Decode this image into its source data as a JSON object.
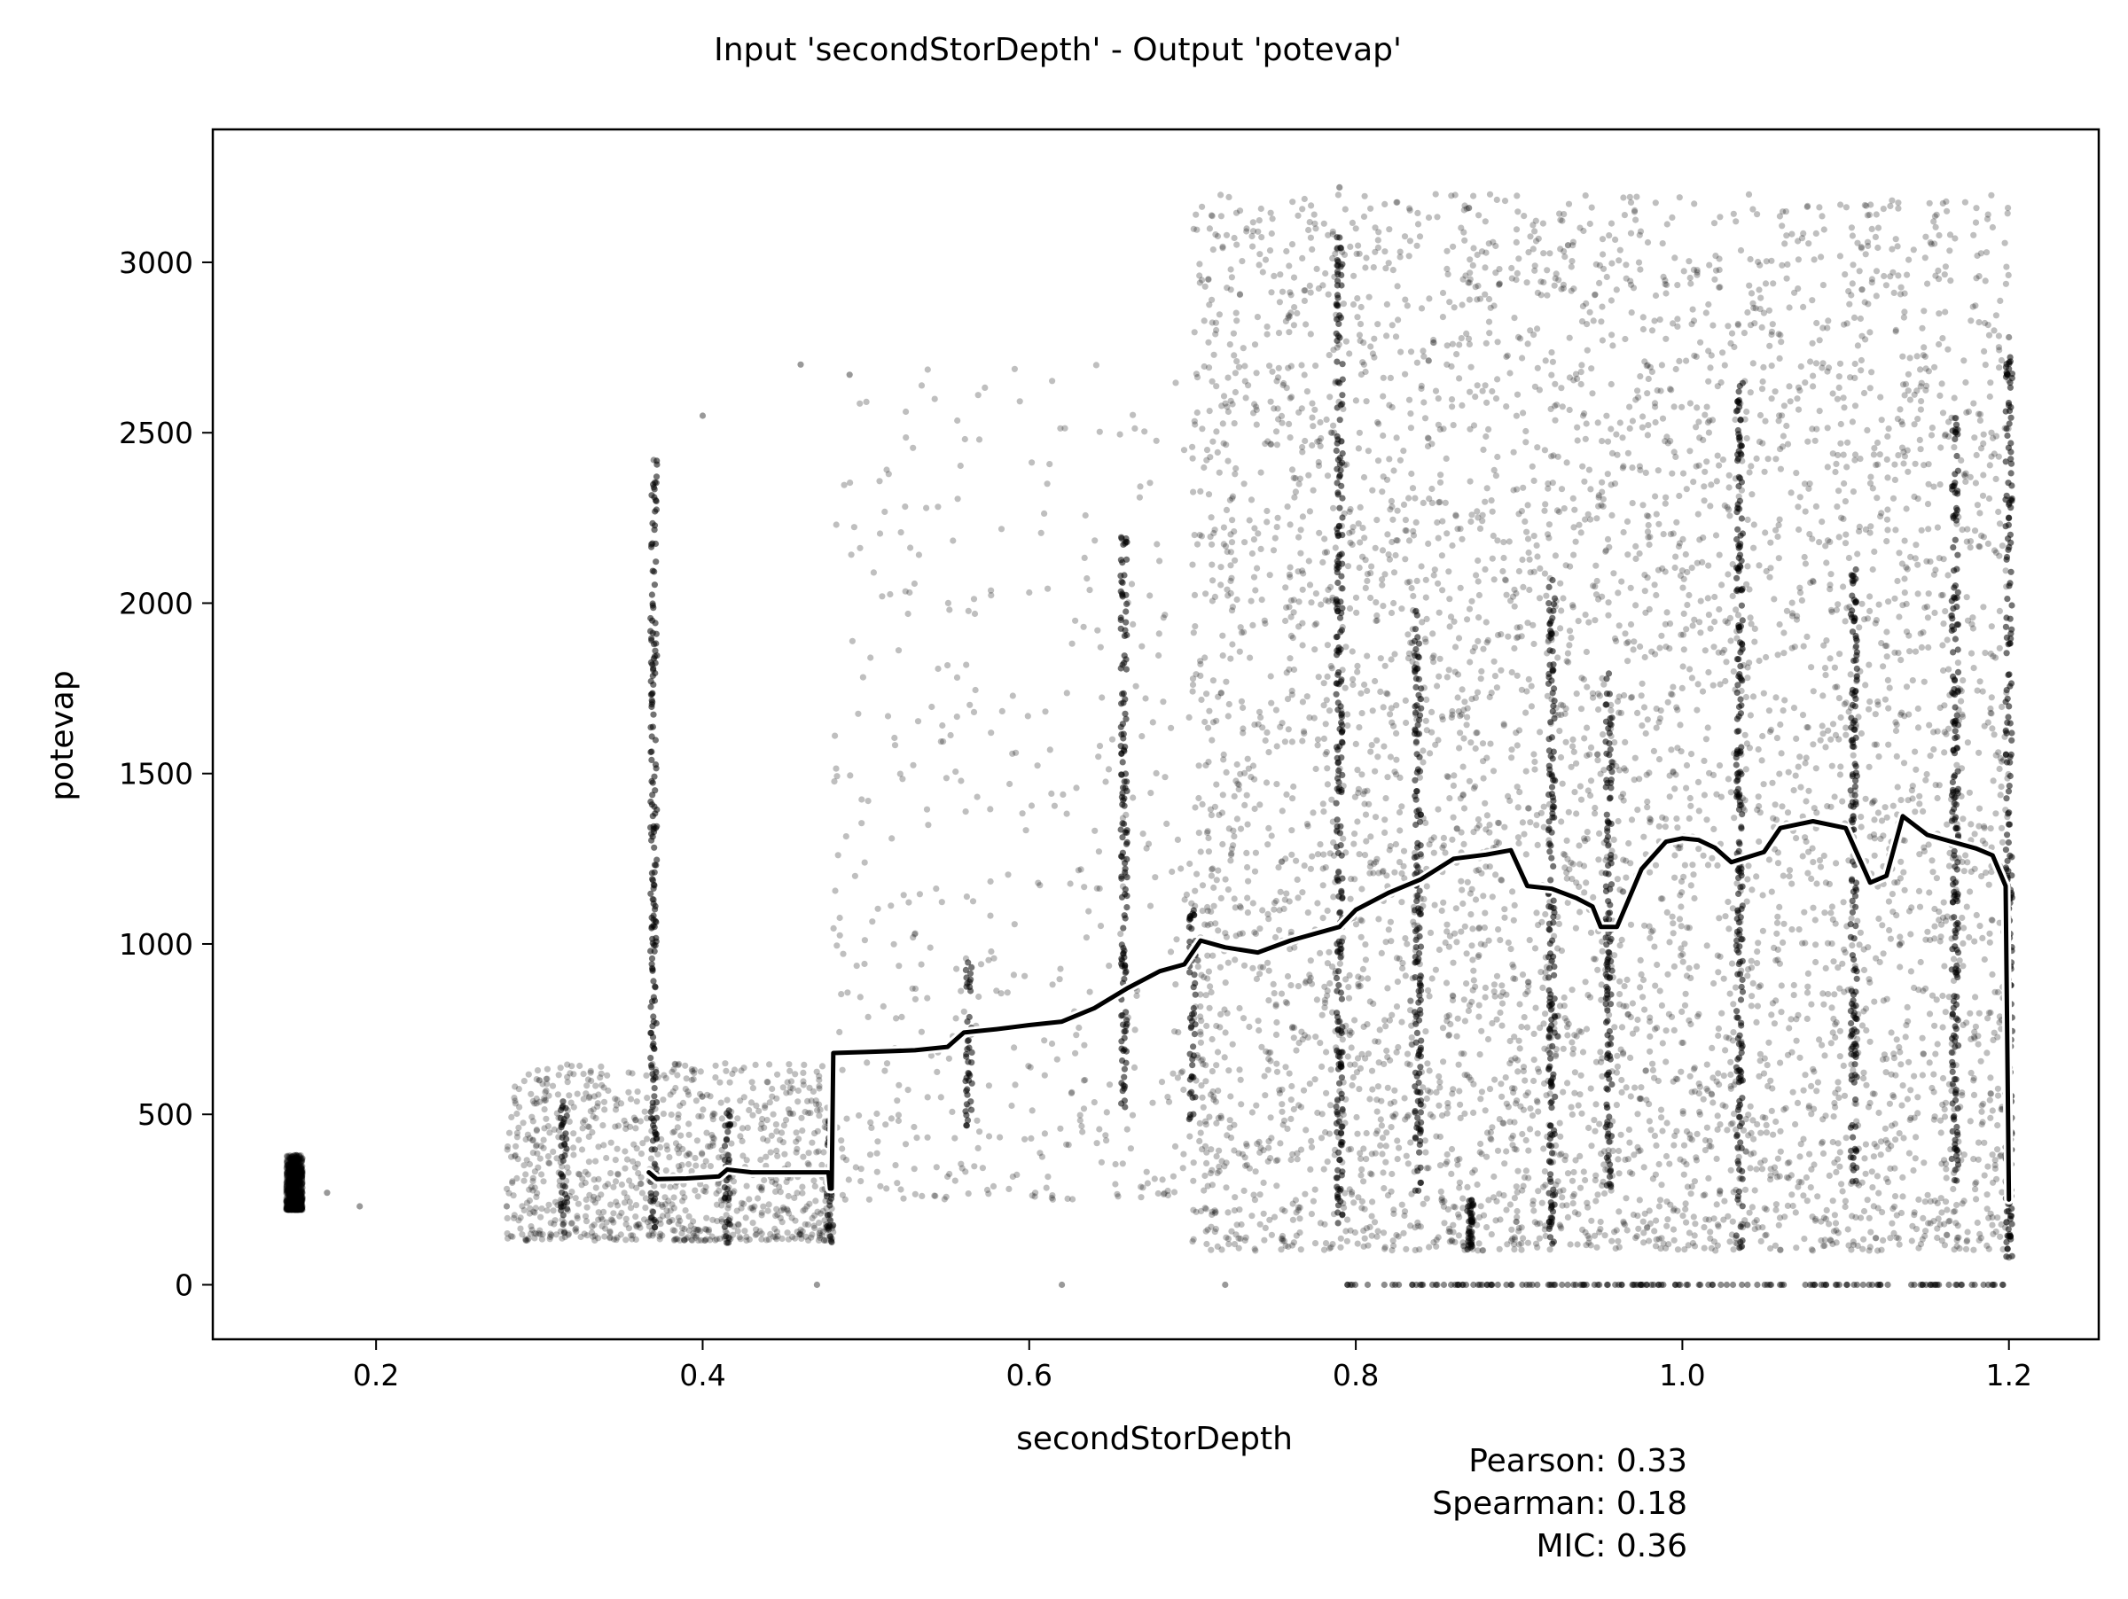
{
  "chart_data": {
    "type": "scatter",
    "title": "Input 'secondStorDepth' - Output 'potevap'",
    "xlabel": "secondStorDepth",
    "ylabel": "potevap",
    "xlim": [
      0.1,
      1.255
    ],
    "ylim": [
      -160,
      3390
    ],
    "x_ticks": [
      0.2,
      0.4,
      0.6,
      0.8,
      1.0,
      1.2
    ],
    "x_tick_labels": [
      "0.2",
      "0.4",
      "0.6",
      "0.8",
      "1.0",
      "1.2"
    ],
    "y_ticks": [
      0,
      500,
      1000,
      1500,
      2000,
      2500,
      3000
    ],
    "y_tick_labels": [
      "0",
      "500",
      "1000",
      "1500",
      "2000",
      "2500",
      "3000"
    ],
    "grid": false,
    "point_color": "#000000",
    "trend_color": "#000000",
    "trend_outline_color": "#ffffff",
    "series": [
      {
        "kind": "scatter-point-cloud",
        "description_clusters": [
          {
            "x_range": [
              0.145,
              0.155
            ],
            "y_range": [
              220,
              380
            ],
            "density": "high"
          },
          {
            "x_range": [
              0.28,
              0.48
            ],
            "y_range": [
              130,
              650
            ],
            "density": "high"
          },
          {
            "x_range": [
              0.48,
              0.7
            ],
            "y_range": [
              250,
              2700
            ],
            "density": "low"
          },
          {
            "x_range": [
              0.7,
              1.2
            ],
            "y_range": [
              100,
              3200
            ],
            "density": "very high"
          }
        ],
        "sample_points": [
          {
            "x": 0.15,
            "y": 380
          },
          {
            "x": 0.15,
            "y": 220
          },
          {
            "x": 0.17,
            "y": 270
          },
          {
            "x": 0.19,
            "y": 230
          },
          {
            "x": 0.28,
            "y": 230
          },
          {
            "x": 0.3,
            "y": 600
          },
          {
            "x": 0.37,
            "y": 2420
          },
          {
            "x": 0.37,
            "y": 1130
          },
          {
            "x": 0.4,
            "y": 2550
          },
          {
            "x": 0.46,
            "y": 2700
          },
          {
            "x": 0.49,
            "y": 2670
          },
          {
            "x": 0.47,
            "y": 0
          },
          {
            "x": 0.62,
            "y": 0
          },
          {
            "x": 0.72,
            "y": 0
          },
          {
            "x": 0.79,
            "y": 3220
          },
          {
            "x": 0.93,
            "y": 3050
          },
          {
            "x": 1.11,
            "y": 2920
          },
          {
            "x": 1.2,
            "y": 2780
          },
          {
            "x": 1.2,
            "y": 80
          }
        ],
        "vertical_bands": [
          {
            "x": 0.15,
            "y_range": [
              220,
              380
            ]
          },
          {
            "x": 0.315,
            "y_range": [
              150,
              560
            ]
          },
          {
            "x": 0.37,
            "y_range": [
              150,
              2420
            ]
          },
          {
            "x": 0.415,
            "y_range": [
              120,
              520
            ]
          },
          {
            "x": 0.478,
            "y_range": [
              120,
              480
            ]
          },
          {
            "x": 0.563,
            "y_range": [
              450,
              950
            ]
          },
          {
            "x": 0.658,
            "y_range": [
              500,
              2200
            ]
          },
          {
            "x": 0.7,
            "y_range": [
              480,
              1100
            ]
          },
          {
            "x": 0.79,
            "y_range": [
              180,
              3100
            ]
          },
          {
            "x": 0.838,
            "y_range": [
              250,
              2000
            ]
          },
          {
            "x": 0.87,
            "y_range": [
              100,
              250
            ]
          },
          {
            "x": 0.92,
            "y_range": [
              120,
              2100
            ]
          },
          {
            "x": 0.955,
            "y_range": [
              260,
              1800
            ]
          },
          {
            "x": 1.035,
            "y_range": [
              100,
              2650
            ]
          },
          {
            "x": 1.105,
            "y_range": [
              300,
              2100
            ]
          },
          {
            "x": 1.167,
            "y_range": [
              300,
              2550
            ]
          },
          {
            "x": 1.2,
            "y_range": [
              80,
              2730
            ]
          }
        ]
      },
      {
        "kind": "trend-line",
        "points": [
          {
            "x": 0.367,
            "y": 330
          },
          {
            "x": 0.372,
            "y": 310
          },
          {
            "x": 0.39,
            "y": 312
          },
          {
            "x": 0.41,
            "y": 318
          },
          {
            "x": 0.415,
            "y": 338
          },
          {
            "x": 0.43,
            "y": 330
          },
          {
            "x": 0.45,
            "y": 330
          },
          {
            "x": 0.477,
            "y": 330
          },
          {
            "x": 0.478,
            "y": 282
          },
          {
            "x": 0.479,
            "y": 282
          },
          {
            "x": 0.48,
            "y": 680
          },
          {
            "x": 0.5,
            "y": 683
          },
          {
            "x": 0.53,
            "y": 688
          },
          {
            "x": 0.55,
            "y": 698
          },
          {
            "x": 0.56,
            "y": 740
          },
          {
            "x": 0.58,
            "y": 750
          },
          {
            "x": 0.6,
            "y": 762
          },
          {
            "x": 0.62,
            "y": 772
          },
          {
            "x": 0.64,
            "y": 812
          },
          {
            "x": 0.66,
            "y": 870
          },
          {
            "x": 0.68,
            "y": 920
          },
          {
            "x": 0.695,
            "y": 940
          },
          {
            "x": 0.705,
            "y": 1010
          },
          {
            "x": 0.72,
            "y": 990
          },
          {
            "x": 0.74,
            "y": 975
          },
          {
            "x": 0.76,
            "y": 1010
          },
          {
            "x": 0.79,
            "y": 1050
          },
          {
            "x": 0.8,
            "y": 1100
          },
          {
            "x": 0.82,
            "y": 1150
          },
          {
            "x": 0.84,
            "y": 1190
          },
          {
            "x": 0.86,
            "y": 1250
          },
          {
            "x": 0.88,
            "y": 1262
          },
          {
            "x": 0.895,
            "y": 1275
          },
          {
            "x": 0.905,
            "y": 1170
          },
          {
            "x": 0.92,
            "y": 1162
          },
          {
            "x": 0.935,
            "y": 1135
          },
          {
            "x": 0.945,
            "y": 1110
          },
          {
            "x": 0.95,
            "y": 1050
          },
          {
            "x": 0.96,
            "y": 1050
          },
          {
            "x": 0.975,
            "y": 1220
          },
          {
            "x": 0.99,
            "y": 1300
          },
          {
            "x": 1.0,
            "y": 1310
          },
          {
            "x": 1.01,
            "y": 1305
          },
          {
            "x": 1.02,
            "y": 1282
          },
          {
            "x": 1.03,
            "y": 1240
          },
          {
            "x": 1.05,
            "y": 1270
          },
          {
            "x": 1.06,
            "y": 1340
          },
          {
            "x": 1.08,
            "y": 1360
          },
          {
            "x": 1.1,
            "y": 1340
          },
          {
            "x": 1.115,
            "y": 1180
          },
          {
            "x": 1.125,
            "y": 1200
          },
          {
            "x": 1.135,
            "y": 1375
          },
          {
            "x": 1.15,
            "y": 1320
          },
          {
            "x": 1.165,
            "y": 1300
          },
          {
            "x": 1.18,
            "y": 1280
          },
          {
            "x": 1.19,
            "y": 1260
          },
          {
            "x": 1.198,
            "y": 1170
          },
          {
            "x": 1.2,
            "y": 250
          }
        ]
      }
    ],
    "annotations": [
      {
        "label": "Pearson:",
        "value": "0.33"
      },
      {
        "label": "Spearman:",
        "value": "0.18"
      },
      {
        "label": "MIC:",
        "value": "0.36"
      }
    ]
  }
}
